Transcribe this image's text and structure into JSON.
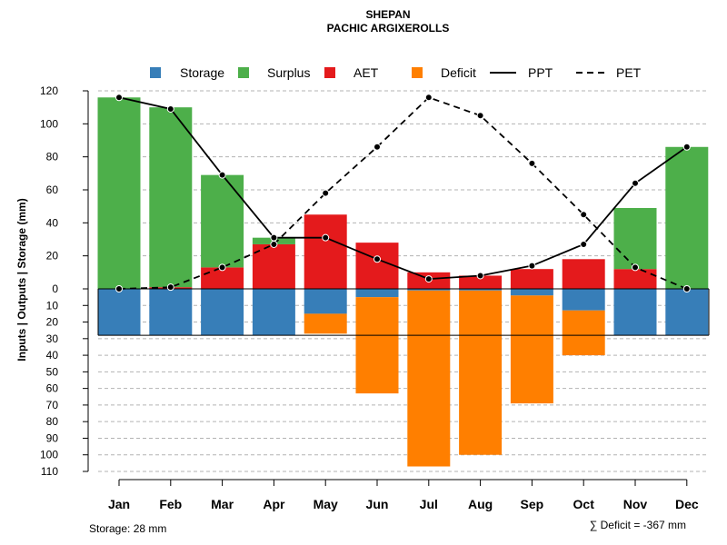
{
  "chart_data": {
    "type": "bar",
    "title": "SHEPAN",
    "subtitle": "PACHIC ARGIXEROLLS",
    "ylabel": "Inputs | Outputs | Storage    (mm)",
    "categories": [
      "Jan",
      "Feb",
      "Mar",
      "Apr",
      "May",
      "Jun",
      "Jul",
      "Aug",
      "Sep",
      "Oct",
      "Nov",
      "Dec"
    ],
    "y_upper_ticks": [
      "120",
      "100",
      "80",
      "60",
      "40",
      "20",
      "0"
    ],
    "y_lower_ticks": [
      "10",
      "20",
      "30",
      "40",
      "50",
      "60",
      "70",
      "80",
      "90",
      "100",
      "110"
    ],
    "ylim": [
      -110,
      120
    ],
    "storage_capacity": 28,
    "series": [
      {
        "name": "Storage",
        "color": "#377EB8",
        "values": [
          28,
          28,
          28,
          28,
          15,
          5,
          1,
          1,
          4,
          13,
          28,
          28
        ]
      },
      {
        "name": "Surplus",
        "color": "#4DAF4A",
        "values": [
          116,
          109,
          56,
          4,
          0,
          0,
          0,
          0,
          0,
          0,
          37,
          86
        ]
      },
      {
        "name": "AET",
        "color": "#E41A1C",
        "values": [
          0,
          1,
          13,
          27,
          45,
          28,
          10,
          8,
          12,
          18,
          12,
          0
        ]
      },
      {
        "name": "Deficit",
        "color": "#FF7F00",
        "values": [
          0,
          0,
          0,
          0,
          12,
          58,
          106,
          99,
          65,
          27,
          0,
          0
        ]
      },
      {
        "name": "PPT",
        "color": "#000000",
        "line": "solid",
        "values": [
          116,
          109,
          69,
          31,
          31,
          18,
          6,
          8,
          14,
          27,
          64,
          86
        ]
      },
      {
        "name": "PET",
        "color": "#000000",
        "line": "dashed",
        "values": [
          0,
          1,
          13,
          27,
          58,
          86,
          116,
          105,
          76,
          45,
          13,
          0
        ]
      }
    ],
    "legend_position": "top",
    "grid": true
  },
  "footer": {
    "storage_text": "Storage: 28 mm",
    "deficit_text": "∑ Deficit = -367 mm"
  }
}
